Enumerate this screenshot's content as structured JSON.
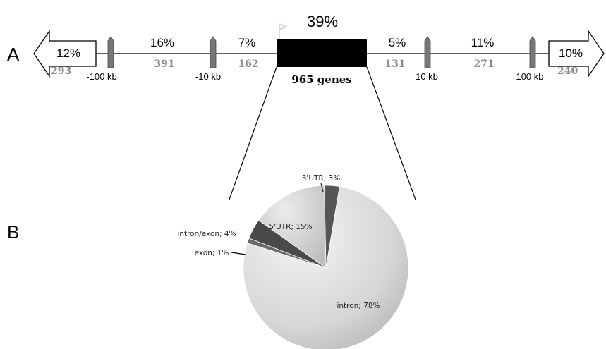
{
  "panels": {
    "a": "A",
    "b": "B"
  },
  "percent_labels": {
    "left_arrow": "12%",
    "seg_left_outer": "16%",
    "seg_left_inner": "7%",
    "center": "39%",
    "seg_right_inner": "5%",
    "seg_right_outer": "11%",
    "right_arrow": "10%"
  },
  "count_labels": {
    "left_arrow": "293",
    "seg_left_outer": "391",
    "seg_left_inner": "162",
    "seg_right_inner": "131",
    "seg_right_outer": "271",
    "right_arrow": "240"
  },
  "distance_labels": {
    "m100": "-100 kb",
    "m10": "-10 kb",
    "p10": "10 kb",
    "p100": "100 kb"
  },
  "gene_box_label": "965 genes",
  "chart_data": {
    "type": "pie",
    "title": "",
    "slices": [
      {
        "label": "3'UTR; 3%",
        "value": 3,
        "color": "#555555"
      },
      {
        "label": "intron; 78%",
        "value": 78,
        "color": "#d8d8d8"
      },
      {
        "label": "exon; 1%",
        "value": 1,
        "color": "#6a6a6a"
      },
      {
        "label": "intron/exon; 4%",
        "value": 4,
        "color": "#4a4a4a"
      },
      {
        "label": "5'UTR; 15%",
        "value": 15,
        "color": "#c8c8c8"
      }
    ]
  }
}
